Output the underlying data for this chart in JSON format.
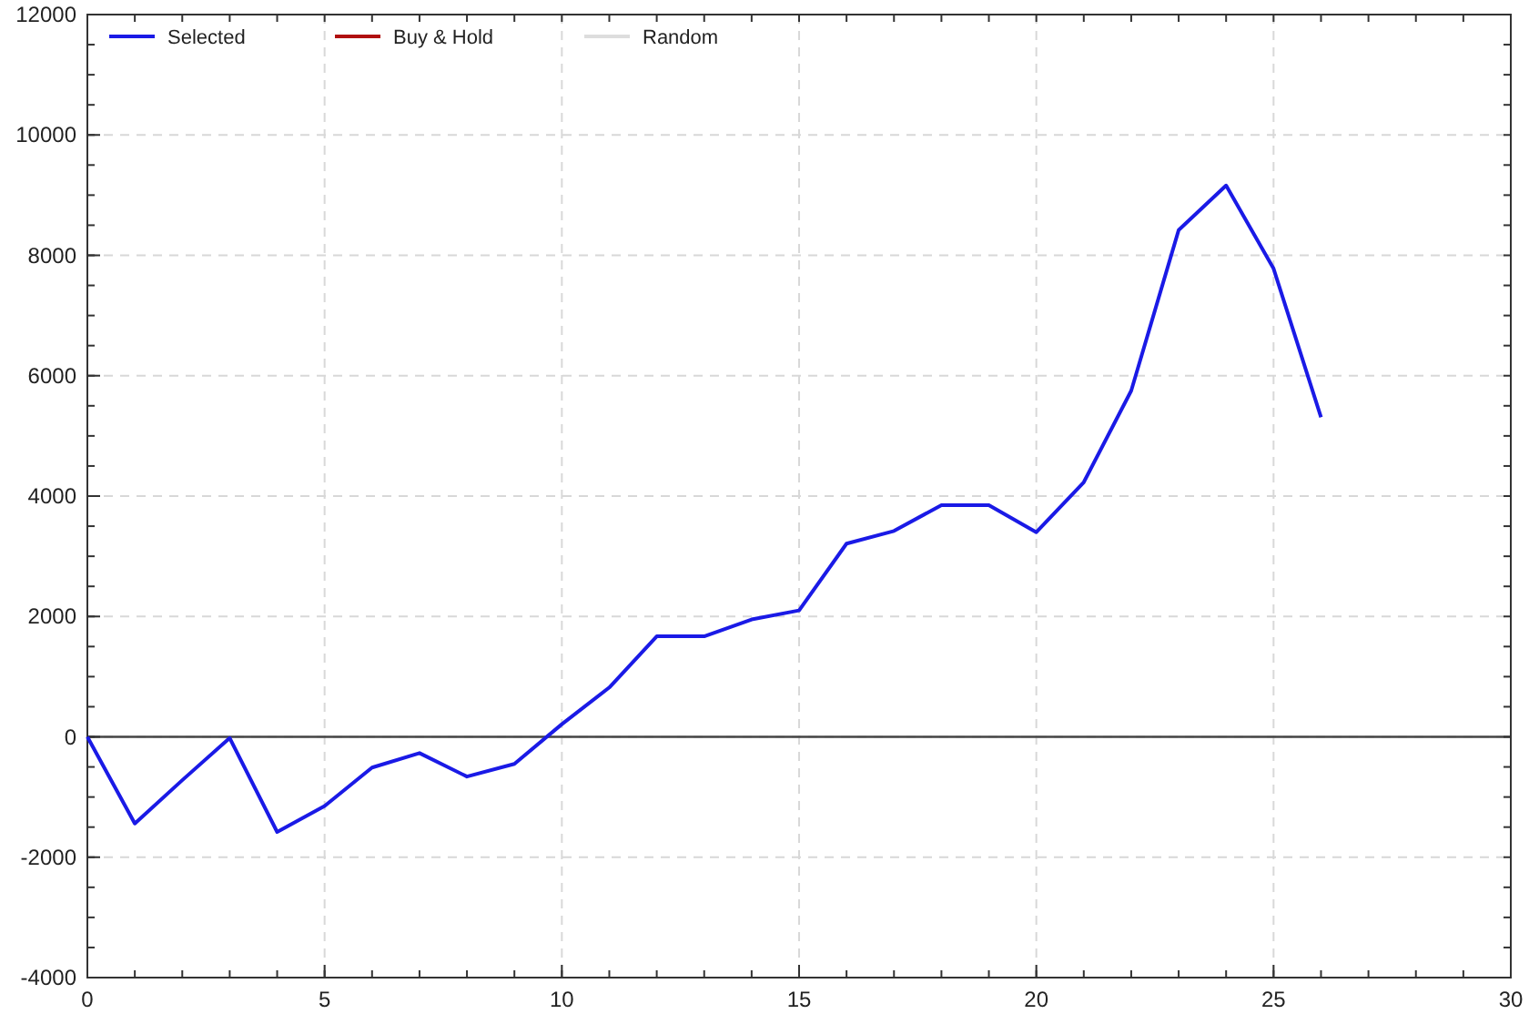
{
  "chart_data": {
    "type": "line",
    "x": [
      0,
      1,
      2,
      3,
      4,
      5,
      6,
      7,
      8,
      9,
      10,
      11,
      12,
      13,
      14,
      15,
      16,
      17,
      18,
      19,
      20,
      21,
      22,
      23,
      24,
      25,
      26
    ],
    "series": [
      {
        "name": "Selected",
        "color": "#1a1ae6",
        "values": [
          0,
          -1440,
          -720,
          -20,
          -1580,
          -1150,
          -510,
          -270,
          -660,
          -450,
          210,
          820,
          1670,
          1670,
          1950,
          2100,
          3210,
          3420,
          3850,
          3850,
          3400,
          4230,
          5750,
          8420,
          9160,
          7780,
          5310
        ]
      },
      {
        "name": "Buy & Hold",
        "color": "#b01010",
        "values": [
          null,
          null,
          null,
          null,
          null,
          null,
          null,
          null,
          null,
          null,
          null,
          null,
          null,
          null,
          null,
          null,
          null,
          null,
          null,
          null,
          null,
          null,
          null,
          null,
          null,
          null,
          null
        ]
      },
      {
        "name": "Random",
        "color": "#dddddd",
        "values": [
          null,
          null,
          null,
          null,
          null,
          null,
          null,
          null,
          null,
          null,
          null,
          null,
          null,
          null,
          null,
          null,
          null,
          null,
          null,
          null,
          null,
          null,
          null,
          null,
          null,
          null,
          null
        ]
      }
    ],
    "xlim": [
      0,
      30
    ],
    "xticks": [
      0,
      5,
      10,
      15,
      20,
      25,
      30
    ],
    "ylim": [
      -4000,
      12000
    ],
    "yticks": [
      -4000,
      -2000,
      0,
      2000,
      4000,
      6000,
      8000,
      10000,
      12000
    ],
    "ref_lines": [
      {
        "axis": "y",
        "value": 0,
        "color": "#444444"
      }
    ],
    "grid": true,
    "legend": "top left",
    "line_style": "solid",
    "marker": "none"
  }
}
